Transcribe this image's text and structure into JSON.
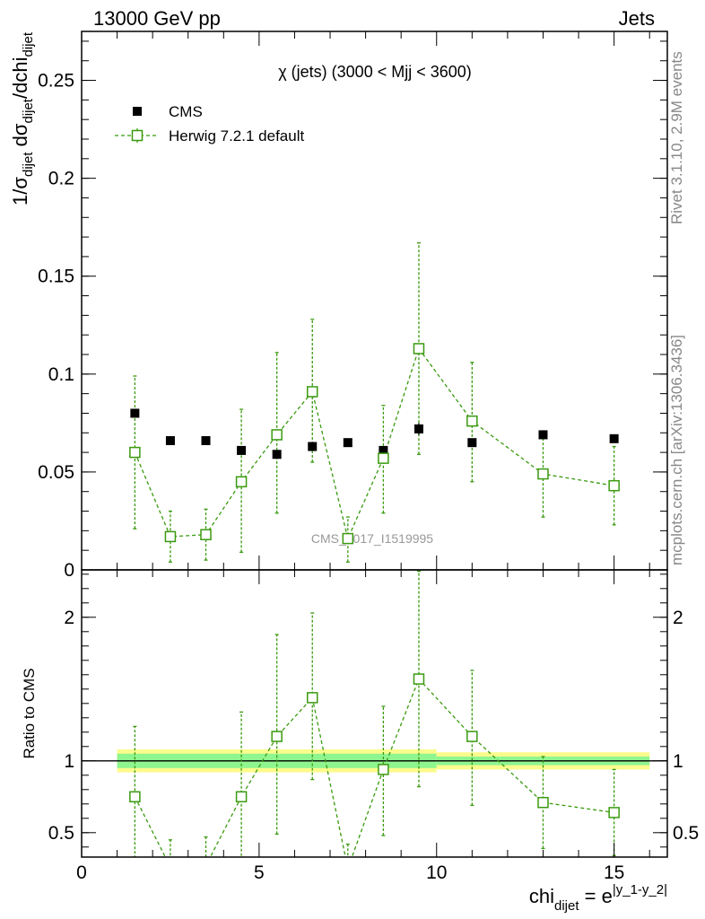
{
  "header": {
    "left": "13000 GeV pp",
    "right": "Jets"
  },
  "side_labels": {
    "rivet": "Rivet 3.1.10,  2.9M events",
    "mcplots": "mcplots.cern.ch [arXiv:1306.3436]"
  },
  "chart_data": [
    {
      "type": "scatter",
      "title": "χ (jets) (3000 < Mjj < 3600)",
      "watermark": "CMS_2017_I1519995",
      "ylabel": {
        "main": "1/σ",
        "sub1": "dijet",
        "mid": " dσ",
        "sub2": "dijet",
        "end": "/dchi",
        "sub3": "dijet"
      },
      "xlim": [
        0,
        16.5
      ],
      "ylim": [
        0,
        0.275
      ],
      "yticks": [
        {
          "v": 0,
          "label": "0"
        },
        {
          "v": 0.05,
          "label": "0.05"
        },
        {
          "v": 0.1,
          "label": "0.1"
        },
        {
          "v": 0.15,
          "label": "0.15"
        },
        {
          "v": 0.2,
          "label": "0.2"
        },
        {
          "v": 0.25,
          "label": "0.25"
        }
      ],
      "legend": [
        {
          "name": "CMS",
          "marker": "filled-square",
          "color": "#000000"
        },
        {
          "name": "Herwig 7.2.1 default",
          "marker": "open-square",
          "color": "#3a9a0f"
        }
      ],
      "series": [
        {
          "name": "CMS",
          "color": "#000000",
          "x": [
            1.5,
            2.5,
            3.5,
            4.5,
            5.5,
            6.5,
            7.5,
            8.5,
            9.5,
            11,
            13,
            15
          ],
          "y": [
            0.08,
            0.066,
            0.066,
            0.061,
            0.059,
            0.063,
            0.065,
            0.061,
            0.072,
            0.065,
            0.069,
            0.067
          ],
          "yerr": [
            0.002,
            0.001,
            0.001,
            0.002,
            0.002,
            0.002,
            0.001,
            0.002,
            0.003,
            0.002,
            0.002,
            0.001
          ]
        },
        {
          "name": "Herwig 7.2.1 default",
          "color": "#3a9a0f",
          "x": [
            1.5,
            2.5,
            3.5,
            4.5,
            5.5,
            6.5,
            7.5,
            8.5,
            9.5,
            11,
            13,
            15
          ],
          "y": [
            0.06,
            0.017,
            0.018,
            0.045,
            0.069,
            0.091,
            0.016,
            0.057,
            0.113,
            0.076,
            0.049,
            0.043
          ],
          "ylo": [
            0.021,
            0.004,
            0.005,
            0.009,
            0.029,
            0.055,
            0.004,
            0.029,
            0.059,
            0.045,
            0.027,
            0.023
          ],
          "yhi": [
            0.099,
            0.03,
            0.031,
            0.082,
            0.111,
            0.128,
            0.027,
            0.084,
            0.167,
            0.106,
            0.071,
            0.063
          ]
        }
      ]
    },
    {
      "type": "scatter",
      "ylabel": "Ratio to CMS",
      "xlabel": {
        "main": "chi",
        "sub": "dijet",
        "mid": " = e",
        "sup": "|y_1-y_2|"
      },
      "xlim": [
        0,
        16.5
      ],
      "ylim": [
        0.33,
        2.33
      ],
      "xticks": [
        {
          "v": 0,
          "label": "0"
        },
        {
          "v": 5,
          "label": "5"
        },
        {
          "v": 10,
          "label": "10"
        },
        {
          "v": 15,
          "label": "15"
        }
      ],
      "yticks": [
        {
          "v": 0.5,
          "label": "0.5"
        },
        {
          "v": 1,
          "label": "1"
        },
        {
          "v": 2,
          "label": "2"
        }
      ],
      "bands": [
        {
          "xlo": 1,
          "xhi": 10,
          "inner": 0.05,
          "outer": 0.08
        },
        {
          "xlo": 10,
          "xhi": 16,
          "inner": 0.03,
          "outer": 0.06
        }
      ],
      "band_colors": {
        "inner": "#8ff58f",
        "outer": "#fbfb8d"
      },
      "series": [
        {
          "name": "Herwig 7.2.1 default",
          "color": "#3a9a0f",
          "x": [
            1.5,
            2.5,
            3.5,
            4.5,
            5.5,
            6.5,
            7.5,
            8.5,
            9.5,
            11,
            13,
            15
          ],
          "y": [
            0.75,
            0.26,
            0.27,
            0.75,
            1.17,
            1.44,
            0.25,
            0.94,
            1.57,
            1.17,
            0.71,
            0.64
          ],
          "ylo": [
            0.26,
            0.06,
            0.08,
            0.15,
            0.49,
            0.87,
            0.06,
            0.48,
            0.82,
            0.69,
            0.39,
            0.34
          ],
          "yhi": [
            1.24,
            0.45,
            0.47,
            1.34,
            1.88,
            2.03,
            0.42,
            1.38,
            2.32,
            1.63,
            1.03,
            0.94
          ]
        }
      ]
    }
  ]
}
